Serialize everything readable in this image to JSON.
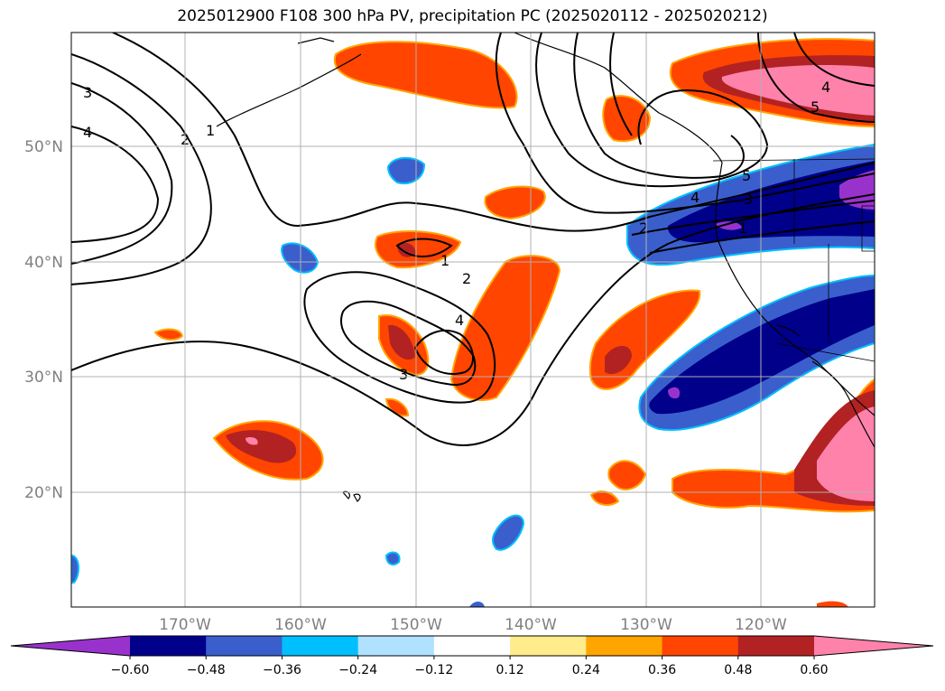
{
  "title": "2025012900 F108 300 hPa PV, precipitation PC (2025020112 - 2025020212)",
  "lat_labels": [
    "50°N",
    "40°N",
    "30°N",
    "20°N"
  ],
  "lon_labels": [
    "170°W",
    "160°W",
    "150°W",
    "140°W",
    "130°W",
    "120°W"
  ],
  "colorbar": {
    "ticks": [
      "−0.60",
      "−0.48",
      "−0.36",
      "−0.24",
      "−0.12",
      "0.12",
      "0.24",
      "0.36",
      "0.48",
      "0.60"
    ],
    "colors": [
      "#9932cc",
      "#00008b",
      "#3a5fcd",
      "#00bfff",
      "#b0e2ff",
      "#ffffff",
      "#ffec8b",
      "#ffa500",
      "#ff4500",
      "#b22222",
      "#ff82ab"
    ]
  },
  "contour_labels": {
    "c1": "1",
    "c2": "2",
    "c3": "3",
    "c4": "4",
    "c5": "5"
  }
}
